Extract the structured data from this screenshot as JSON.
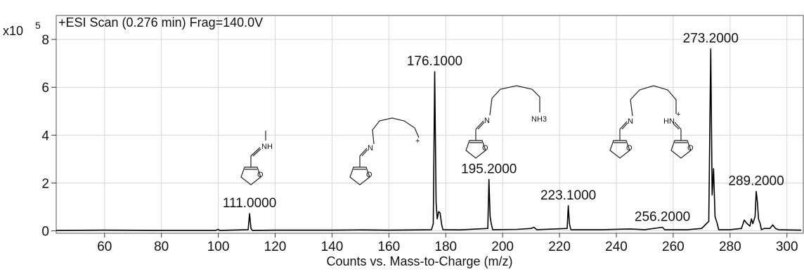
{
  "chart_data": {
    "type": "line",
    "title": "+ESI Scan (0.276 min) Frag=140.0V",
    "xlabel": "Counts vs. Mass-to-Charge (m/z)",
    "ylabel": "",
    "y_multiplier_base": "x10",
    "y_multiplier_exp": "5",
    "xlim": [
      43,
      306
    ],
    "ylim": [
      -0.1,
      9.0
    ],
    "x_ticks": [
      60,
      80,
      100,
      120,
      140,
      160,
      180,
      200,
      220,
      240,
      260,
      280,
      300
    ],
    "y_ticks": [
      0,
      2,
      4,
      6,
      8
    ],
    "grid": true,
    "series": [
      {
        "points": [
          [
            43,
            0.02
          ],
          [
            60,
            0.03
          ],
          [
            80,
            0.02
          ],
          [
            99,
            0.02
          ],
          [
            100,
            0.06
          ],
          [
            100.5,
            0.02
          ],
          [
            110.5,
            0.05
          ],
          [
            111,
            0.72
          ],
          [
            111.5,
            0.1
          ],
          [
            112,
            0.02
          ],
          [
            120,
            0.03
          ],
          [
            140,
            0.03
          ],
          [
            150,
            0.04
          ],
          [
            160,
            0.03
          ],
          [
            170,
            0.04
          ],
          [
            175,
            0.05
          ],
          [
            175.6,
            0.3
          ],
          [
            176.1,
            6.65
          ],
          [
            176.6,
            1.2
          ],
          [
            177,
            0.5
          ],
          [
            177.5,
            0.8
          ],
          [
            178,
            0.75
          ],
          [
            178.5,
            0.3
          ],
          [
            179,
            0.05
          ],
          [
            185,
            0.04
          ],
          [
            194.8,
            0.1
          ],
          [
            195.2,
            2.15
          ],
          [
            195.6,
            0.6
          ],
          [
            196,
            0.3
          ],
          [
            196.5,
            0.05
          ],
          [
            205,
            0.06
          ],
          [
            210,
            0.1
          ],
          [
            211,
            0.15
          ],
          [
            212,
            0.05
          ],
          [
            222.7,
            0.1
          ],
          [
            223.1,
            1.05
          ],
          [
            223.5,
            0.3
          ],
          [
            224,
            0.05
          ],
          [
            235,
            0.05
          ],
          [
            245,
            0.08
          ],
          [
            250,
            0.05
          ],
          [
            256.2,
            0.15
          ],
          [
            257,
            0.05
          ],
          [
            265,
            0.05
          ],
          [
            270,
            0.1
          ],
          [
            272.5,
            0.4
          ],
          [
            273.2,
            7.6
          ],
          [
            273.7,
            1.5
          ],
          [
            274.2,
            2.6
          ],
          [
            274.7,
            0.6
          ],
          [
            275.5,
            0.3
          ],
          [
            276,
            0.05
          ],
          [
            280,
            0.05
          ],
          [
            284,
            0.1
          ],
          [
            285,
            0.45
          ],
          [
            286,
            0.3
          ],
          [
            287,
            0.2
          ],
          [
            287.5,
            0.5
          ],
          [
            288,
            0.3
          ],
          [
            288.8,
            0.6
          ],
          [
            289.2,
            1.65
          ],
          [
            289.6,
            1.2
          ],
          [
            290,
            0.5
          ],
          [
            290.6,
            0.3
          ],
          [
            291,
            0.05
          ],
          [
            292,
            0.1
          ],
          [
            294,
            0.1
          ],
          [
            295,
            0.25
          ],
          [
            296,
            0.1
          ],
          [
            297,
            0.05
          ],
          [
            300,
            0.04
          ],
          [
            305,
            0.03
          ]
        ]
      }
    ],
    "annotations": [
      {
        "x": 111.0,
        "y": 0.72,
        "label": "111.0000"
      },
      {
        "x": 176.1,
        "y": 6.65,
        "label": "176.1000"
      },
      {
        "x": 195.2,
        "y": 2.15,
        "label": "195.2000"
      },
      {
        "x": 223.1,
        "y": 1.05,
        "label": "223.1000"
      },
      {
        "x": 256.2,
        "y": 0.15,
        "label": "256.2000"
      },
      {
        "x": 273.2,
        "y": 7.6,
        "label": "273.2000"
      },
      {
        "x": 289.2,
        "y": 1.65,
        "label": "289.2000"
      }
    ],
    "structure_labels": {
      "methyl_iminium": "NH",
      "chain_imine": "N",
      "chain_cation": "+",
      "amine_imine": "N",
      "ammonium": "NH3",
      "diimine_left": "N",
      "diimine_right": "HN",
      "plus_sign": "+",
      "furan_oxygen": "O"
    }
  }
}
